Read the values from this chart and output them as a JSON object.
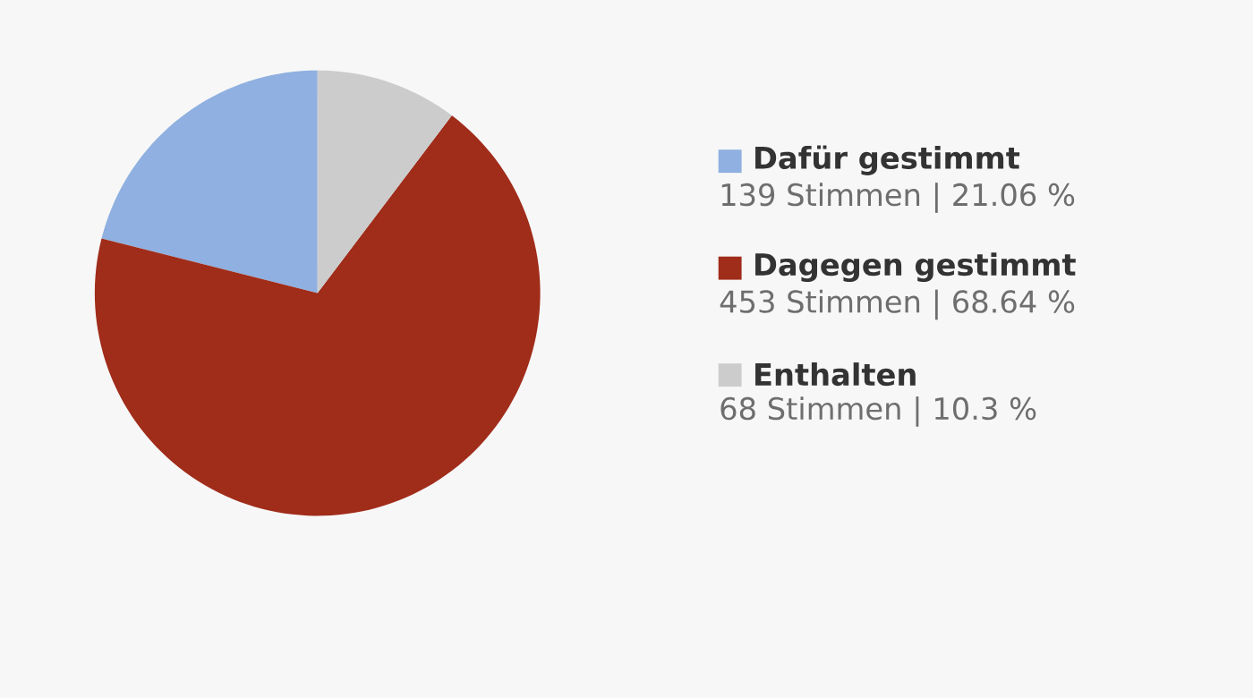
{
  "chart_data": {
    "type": "pie",
    "categories": [
      "Dafür gestimmt",
      "Dagegen gestimmt",
      "Enthalten"
    ],
    "values": [
      139,
      453,
      68
    ],
    "value_labels": [
      "139 Stimmen | 21.06 %",
      "453 Stimmen | 68.64 %",
      "68 Stimmen | 10.3 %"
    ],
    "colors": [
      "#8fb0e0",
      "#a02c1a",
      "#cccccc"
    ],
    "legend": "right"
  }
}
